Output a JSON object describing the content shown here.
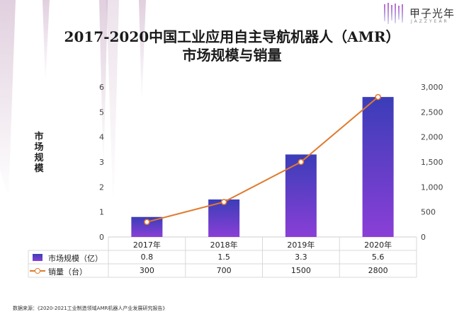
{
  "brand": {
    "name": "甲子光年",
    "sub": "JAZZYEAR"
  },
  "title_line1": "2017-2020中国工业应用自主导航机器人（AMR）",
  "title_line2": "市场规模与销量",
  "source": "数据来源：《2020-2021工业制造领域AMR机器人产业发展研究报告》",
  "chart_data": {
    "type": "bar",
    "categories": [
      "2017年",
      "2018年",
      "2019年",
      "2020年"
    ],
    "series": [
      {
        "name": "市场规模（亿）",
        "type": "bar",
        "axis": "left",
        "values": [
          0.8,
          1.5,
          3.3,
          5.6
        ],
        "labels": [
          "0.8",
          "1.5",
          "3.3",
          "5.6"
        ]
      },
      {
        "name": "销量（台）",
        "type": "line",
        "axis": "right",
        "values": [
          300,
          700,
          1500,
          2800
        ],
        "labels": [
          "300",
          "700",
          "1500",
          "2800"
        ]
      }
    ],
    "ylabel": "市场规模",
    "ylim": [
      0,
      6
    ],
    "y_ticks": [
      "0",
      "1",
      "2",
      "3",
      "4",
      "5",
      "6"
    ],
    "y2lim": [
      0,
      3000
    ],
    "y2_ticks": [
      "0",
      "500",
      "1,000",
      "1,500",
      "2,000",
      "2,500",
      "3,000"
    ],
    "grid": false,
    "legend": "bottom-table",
    "colors": {
      "bar_top": "#3b3db8",
      "bar_bottom": "#8a3fd6",
      "line": "#e07a2e",
      "marker_fill": "#ffffff"
    }
  }
}
